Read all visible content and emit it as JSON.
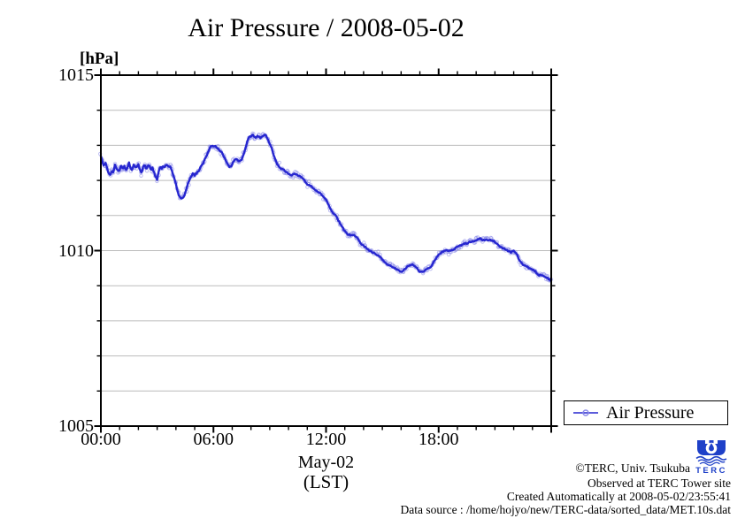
{
  "title": "Air Pressure / 2008-05-02",
  "axes": {
    "y_unit_label": "[hPa]",
    "y_min": 1005,
    "y_max": 1015,
    "y_major_ticks": [
      1005,
      1010,
      1015
    ],
    "y_minor_step": 1,
    "x_min_hour": 0,
    "x_max_hour": 24,
    "x_major_ticks": [
      {
        "hour": 0,
        "label": "00:00"
      },
      {
        "hour": 6,
        "label": "06:00"
      },
      {
        "hour": 12,
        "label": "12:00"
      },
      {
        "hour": 18,
        "label": "18:00"
      }
    ],
    "x_minor_step_hours": 1,
    "x_date_label": "May-02",
    "x_tz_label": "(LST)"
  },
  "legend": {
    "label": "Air Pressure"
  },
  "style": {
    "line_color": "#2626cf",
    "marker_color": "#8a8ae8",
    "grid_color": "#bcbcbc",
    "axis_color": "#000000"
  },
  "footer": {
    "copyright": "©TERC, Univ. Tsukuba",
    "observed": "Observed at TERC Tower site",
    "created": "Created Automatically at 2008-05-02/23:55:41",
    "data_source": "Data source : /home/hojyo/new/TERC-data/sorted_data/MET.10s.dat"
  },
  "logo": {
    "text": "TERC",
    "color": "#1e40c8"
  },
  "chart_data": {
    "type": "line",
    "title": "Air Pressure / 2008-05-02",
    "xlabel": "May-02 (LST)",
    "ylabel": "hPa",
    "xlim_hours": [
      0,
      24
    ],
    "ylim": [
      1005,
      1015
    ],
    "grid": "horizontal gridlines every 1 hPa",
    "legend_position": "outside bottom-right",
    "series": [
      {
        "name": "Air Pressure",
        "marker": "open-circle",
        "points_hour_hpa": [
          [
            0,
            1012.7
          ],
          [
            0.08,
            1012.55
          ],
          [
            0.17,
            1012.4
          ],
          [
            0.25,
            1012.5
          ],
          [
            0.33,
            1012.35
          ],
          [
            0.42,
            1012.2
          ],
          [
            0.5,
            1012.15
          ],
          [
            0.58,
            1012.3
          ],
          [
            0.67,
            1012.2
          ],
          [
            0.75,
            1012.45
          ],
          [
            0.83,
            1012.35
          ],
          [
            0.92,
            1012.25
          ],
          [
            1,
            1012.3
          ],
          [
            1.08,
            1012.45
          ],
          [
            1.17,
            1012.3
          ],
          [
            1.25,
            1012.4
          ],
          [
            1.33,
            1012.3
          ],
          [
            1.42,
            1012.35
          ],
          [
            1.5,
            1012.5
          ],
          [
            1.58,
            1012.35
          ],
          [
            1.67,
            1012.3
          ],
          [
            1.75,
            1012.45
          ],
          [
            1.83,
            1012.35
          ],
          [
            1.92,
            1012.4
          ],
          [
            2,
            1012.45
          ],
          [
            2.08,
            1012.3
          ],
          [
            2.17,
            1012.2
          ],
          [
            2.25,
            1012.4
          ],
          [
            2.33,
            1012.45
          ],
          [
            2.42,
            1012.3
          ],
          [
            2.5,
            1012.4
          ],
          [
            2.58,
            1012.45
          ],
          [
            2.67,
            1012.3
          ],
          [
            2.75,
            1012.35
          ],
          [
            2.83,
            1012.25
          ],
          [
            2.92,
            1012.1
          ],
          [
            3,
            1012.0
          ],
          [
            3.08,
            1012.25
          ],
          [
            3.17,
            1012.4
          ],
          [
            3.25,
            1012.35
          ],
          [
            3.33,
            1012.4
          ],
          [
            3.42,
            1012.4
          ],
          [
            3.5,
            1012.45
          ],
          [
            3.58,
            1012.4
          ],
          [
            3.67,
            1012.4
          ],
          [
            3.75,
            1012.35
          ],
          [
            3.83,
            1012.2
          ],
          [
            3.92,
            1012.05
          ],
          [
            4,
            1011.9
          ],
          [
            4.08,
            1011.7
          ],
          [
            4.17,
            1011.55
          ],
          [
            4.25,
            1011.5
          ],
          [
            4.33,
            1011.5
          ],
          [
            4.42,
            1011.55
          ],
          [
            4.5,
            1011.65
          ],
          [
            4.58,
            1011.8
          ],
          [
            4.67,
            1011.95
          ],
          [
            4.75,
            1012.05
          ],
          [
            4.83,
            1012.15
          ],
          [
            4.92,
            1012.2
          ],
          [
            5,
            1012.15
          ],
          [
            5.08,
            1012.2
          ],
          [
            5.17,
            1012.25
          ],
          [
            5.25,
            1012.3
          ],
          [
            5.33,
            1012.4
          ],
          [
            5.42,
            1012.45
          ],
          [
            5.5,
            1012.55
          ],
          [
            5.58,
            1012.65
          ],
          [
            5.67,
            1012.75
          ],
          [
            5.75,
            1012.85
          ],
          [
            5.83,
            1012.95
          ],
          [
            5.92,
            1013.0
          ],
          [
            6,
            1012.95
          ],
          [
            6.08,
            1013.0
          ],
          [
            6.17,
            1012.95
          ],
          [
            6.25,
            1012.9
          ],
          [
            6.33,
            1012.85
          ],
          [
            6.42,
            1012.8
          ],
          [
            6.5,
            1012.75
          ],
          [
            6.58,
            1012.65
          ],
          [
            6.67,
            1012.55
          ],
          [
            6.75,
            1012.45
          ],
          [
            6.83,
            1012.4
          ],
          [
            6.92,
            1012.4
          ],
          [
            7,
            1012.45
          ],
          [
            7.08,
            1012.55
          ],
          [
            7.17,
            1012.6
          ],
          [
            7.25,
            1012.6
          ],
          [
            7.33,
            1012.55
          ],
          [
            7.42,
            1012.55
          ],
          [
            7.5,
            1012.6
          ],
          [
            7.58,
            1012.7
          ],
          [
            7.67,
            1012.85
          ],
          [
            7.75,
            1013.0
          ],
          [
            7.83,
            1013.15
          ],
          [
            7.92,
            1013.25
          ],
          [
            8,
            1013.25
          ],
          [
            8.08,
            1013.3
          ],
          [
            8.17,
            1013.25
          ],
          [
            8.25,
            1013.2
          ],
          [
            8.33,
            1013.25
          ],
          [
            8.42,
            1013.25
          ],
          [
            8.5,
            1013.2
          ],
          [
            8.58,
            1013.25
          ],
          [
            8.67,
            1013.3
          ],
          [
            8.75,
            1013.3
          ],
          [
            8.83,
            1013.25
          ],
          [
            8.92,
            1013.15
          ],
          [
            9,
            1013.05
          ],
          [
            9.08,
            1012.95
          ],
          [
            9.17,
            1012.8
          ],
          [
            9.25,
            1012.65
          ],
          [
            9.33,
            1012.55
          ],
          [
            9.42,
            1012.45
          ],
          [
            9.5,
            1012.4
          ],
          [
            9.58,
            1012.35
          ],
          [
            9.67,
            1012.3
          ],
          [
            9.75,
            1012.3
          ],
          [
            9.83,
            1012.25
          ],
          [
            9.92,
            1012.25
          ],
          [
            10,
            1012.2
          ],
          [
            10.17,
            1012.15
          ],
          [
            10.33,
            1012.2
          ],
          [
            10.5,
            1012.15
          ],
          [
            10.67,
            1012.1
          ],
          [
            10.83,
            1012.0
          ],
          [
            11,
            1011.9
          ],
          [
            11.17,
            1011.85
          ],
          [
            11.33,
            1011.75
          ],
          [
            11.5,
            1011.7
          ],
          [
            11.67,
            1011.65
          ],
          [
            11.83,
            1011.55
          ],
          [
            12,
            1011.45
          ],
          [
            12.17,
            1011.25
          ],
          [
            12.33,
            1011.1
          ],
          [
            12.5,
            1011.0
          ],
          [
            12.67,
            1010.85
          ],
          [
            12.83,
            1010.7
          ],
          [
            13,
            1010.55
          ],
          [
            13.17,
            1010.45
          ],
          [
            13.33,
            1010.45
          ],
          [
            13.5,
            1010.45
          ],
          [
            13.67,
            1010.35
          ],
          [
            13.83,
            1010.2
          ],
          [
            14,
            1010.15
          ],
          [
            14.17,
            1010.05
          ],
          [
            14.33,
            1010.0
          ],
          [
            14.5,
            1009.95
          ],
          [
            14.67,
            1009.9
          ],
          [
            14.83,
            1009.85
          ],
          [
            15,
            1009.75
          ],
          [
            15.17,
            1009.65
          ],
          [
            15.33,
            1009.6
          ],
          [
            15.5,
            1009.55
          ],
          [
            15.67,
            1009.5
          ],
          [
            15.83,
            1009.45
          ],
          [
            16,
            1009.4
          ],
          [
            16.17,
            1009.45
          ],
          [
            16.33,
            1009.55
          ],
          [
            16.5,
            1009.6
          ],
          [
            16.67,
            1009.6
          ],
          [
            16.83,
            1009.5
          ],
          [
            17,
            1009.4
          ],
          [
            17.17,
            1009.4
          ],
          [
            17.33,
            1009.45
          ],
          [
            17.5,
            1009.5
          ],
          [
            17.67,
            1009.6
          ],
          [
            17.83,
            1009.75
          ],
          [
            18,
            1009.9
          ],
          [
            18.17,
            1009.95
          ],
          [
            18.33,
            1010.0
          ],
          [
            18.5,
            1010.0
          ],
          [
            18.67,
            1010.0
          ],
          [
            18.83,
            1010.05
          ],
          [
            19,
            1010.1
          ],
          [
            19.17,
            1010.15
          ],
          [
            19.33,
            1010.2
          ],
          [
            19.5,
            1010.2
          ],
          [
            19.67,
            1010.25
          ],
          [
            19.83,
            1010.25
          ],
          [
            20,
            1010.3
          ],
          [
            20.17,
            1010.35
          ],
          [
            20.33,
            1010.3
          ],
          [
            20.5,
            1010.3
          ],
          [
            20.67,
            1010.3
          ],
          [
            20.83,
            1010.3
          ],
          [
            21,
            1010.25
          ],
          [
            21.17,
            1010.15
          ],
          [
            21.33,
            1010.1
          ],
          [
            21.5,
            1010.05
          ],
          [
            21.67,
            1010.0
          ],
          [
            21.83,
            1009.95
          ],
          [
            22,
            1010.0
          ],
          [
            22.17,
            1009.9
          ],
          [
            22.33,
            1009.7
          ],
          [
            22.5,
            1009.6
          ],
          [
            22.67,
            1009.55
          ],
          [
            22.83,
            1009.5
          ],
          [
            23,
            1009.45
          ],
          [
            23.17,
            1009.4
          ],
          [
            23.33,
            1009.3
          ],
          [
            23.5,
            1009.3
          ],
          [
            23.67,
            1009.25
          ],
          [
            23.83,
            1009.2
          ],
          [
            23.97,
            1009.15
          ]
        ]
      }
    ]
  }
}
